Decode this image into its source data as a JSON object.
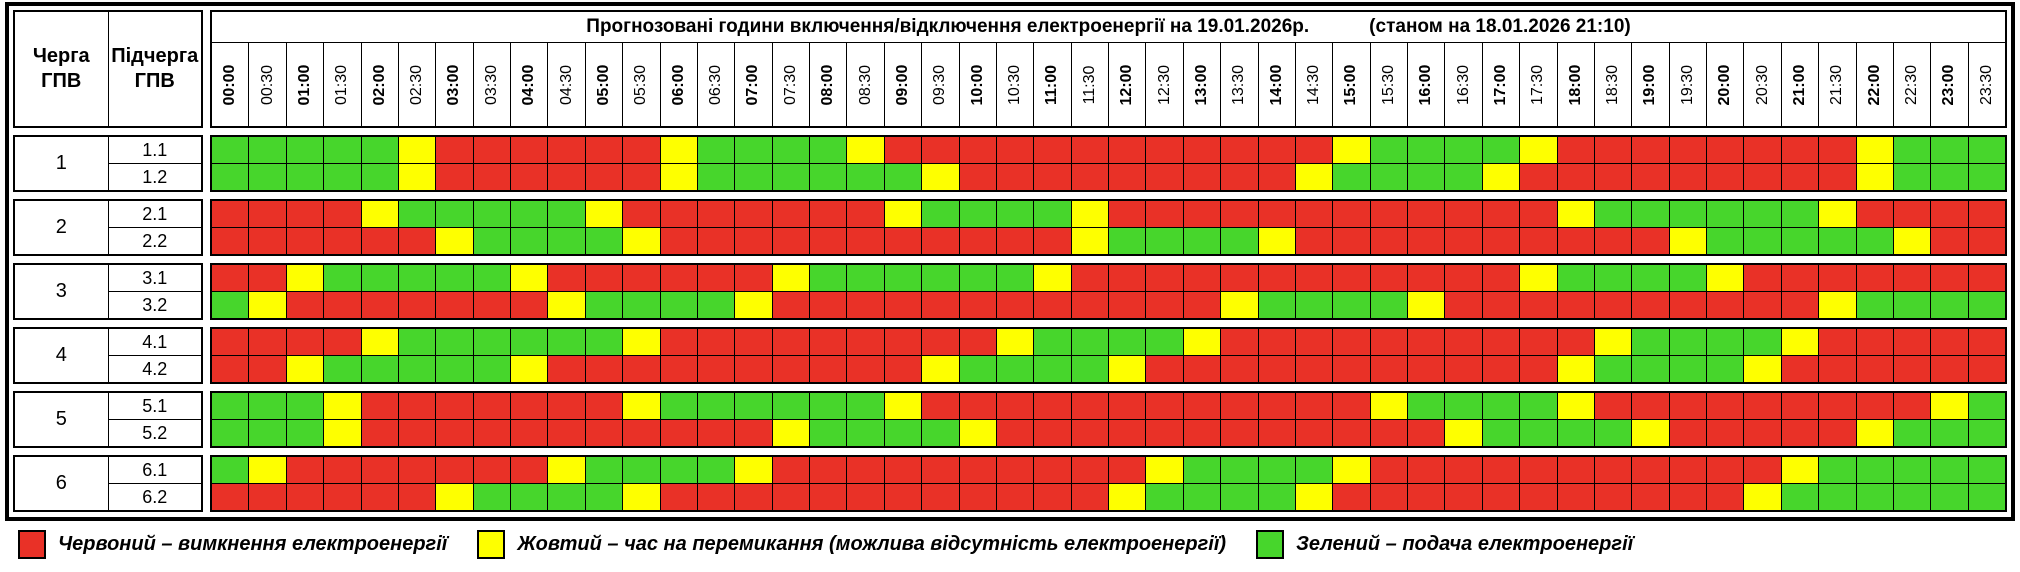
{
  "title": {
    "main": "Прогнозовані години включення/відключення електроенергії на 19.01.2026р.",
    "as_of": "(станом на 18.01.2026 21:10)"
  },
  "left_headers": {
    "queue": "Черга\nГПВ",
    "subqueue": "Підчерга\nГПВ"
  },
  "time_slots": [
    "00:00",
    "00:30",
    "01:00",
    "01:30",
    "02:00",
    "02:30",
    "03:00",
    "03:30",
    "04:00",
    "04:30",
    "05:00",
    "05:30",
    "06:00",
    "06:30",
    "07:00",
    "07:30",
    "08:00",
    "08:30",
    "09:00",
    "09:30",
    "10:00",
    "10:30",
    "11:00",
    "11:30",
    "12:00",
    "12:30",
    "13:00",
    "13:30",
    "14:00",
    "14:30",
    "15:00",
    "15:30",
    "16:00",
    "16:30",
    "17:00",
    "17:30",
    "18:00",
    "18:30",
    "19:00",
    "19:30",
    "20:00",
    "20:30",
    "21:00",
    "21:30",
    "22:00",
    "22:30",
    "23:00",
    "23:30"
  ],
  "colors": {
    "R": "#e93127",
    "Y": "#feff00",
    "G": "#47d62c"
  },
  "color_meanings": {
    "R": "вимкнення",
    "Y": "перемикання",
    "G": "подача"
  },
  "queues": [
    {
      "queue": "1",
      "rows": [
        {
          "label": "1.1",
          "cells": "GGGGGYRRRRRRYGGGGYRRRRRRRRRRRRYGGGGYRRRRRRRRYGGG"
        },
        {
          "label": "1.2",
          "cells": "GGGGGYRRRRRRYGGGGGGYRRRRRRRRRYGGGGYRRRRRRRRRYGGG"
        }
      ]
    },
    {
      "queue": "2",
      "rows": [
        {
          "label": "2.1",
          "cells": "RRRRYGGGGGYRRRRRRRYGGGGYRRRRRRRRRRRRYGGGGGGYRRRR"
        },
        {
          "label": "2.2",
          "cells": "RRRRRRYGGGGYRRRRRRRRRRRYGGGGYRRRRRRRRRRYGGGGGYRR"
        }
      ]
    },
    {
      "queue": "3",
      "rows": [
        {
          "label": "3.1",
          "cells": "RRYGGGGGYRRRRRRYGGGGGGYRRRRRRRRRRRRYGGGGYRRRRRRR"
        },
        {
          "label": "3.2",
          "cells": "GYRRRRRRRYGGGGYRRRRRRRRRRRRYGGGGYRRRRRRRRRRYGGGG"
        }
      ]
    },
    {
      "queue": "4",
      "rows": [
        {
          "label": "4.1",
          "cells": "RRRRYGGGGGGYRRRRRRRRRYGGGGYRRRRRRRRRRYGGGGYRRRRR"
        },
        {
          "label": "4.2",
          "cells": "RRYGGGGGYRRRRRRRRRRYGGGGYRRRRRRRRRRRYGGGGYRRRRRR"
        }
      ]
    },
    {
      "queue": "5",
      "rows": [
        {
          "label": "5.1",
          "cells": "GGGYRRRRRRRYGGGGGGYRRRRRRRRRRRRYGGGGYRRRRRRRRRYG"
        },
        {
          "label": "5.2",
          "cells": "GGGYRRRRRRRRRRRYGGGGYRRRRRRRRRRRRYGGGGYRRRRRYGGG"
        }
      ]
    },
    {
      "queue": "6",
      "rows": [
        {
          "label": "6.1",
          "cells": "GYRRRRRRRYGGGGYRRRRRRRRRRYGGGGYRRRRRRRRRRRYGGGGG"
        },
        {
          "label": "6.2",
          "cells": "RRRRRRYGGGGYRRRRRRRRRRRRYGGGGYRRRRRRRRRRRYGGGGGG"
        }
      ]
    }
  ],
  "legend": [
    {
      "color": "R",
      "text": "Червоний – вимкнення електроенергії"
    },
    {
      "color": "Y",
      "text": "Жовтий – час на перемикання (можлива відсутність електроенергії)"
    },
    {
      "color": "G",
      "text": "Зелений – подача електроенергії"
    }
  ]
}
